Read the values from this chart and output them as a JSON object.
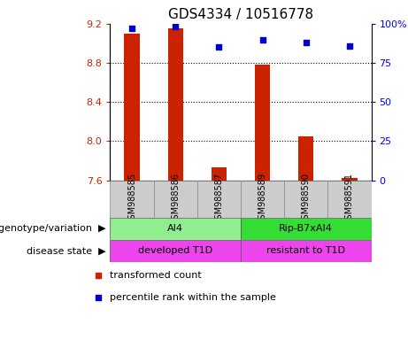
{
  "title": "GDS4334 / 10516778",
  "samples": [
    "GSM988585",
    "GSM988586",
    "GSM988587",
    "GSM988589",
    "GSM988590",
    "GSM988591"
  ],
  "bar_values": [
    9.1,
    9.15,
    7.73,
    8.78,
    8.05,
    7.62
  ],
  "percentile_values": [
    97,
    98,
    85,
    90,
    88,
    86
  ],
  "bar_color": "#cc2200",
  "point_color": "#0000cc",
  "ylim_left": [
    7.6,
    9.2
  ],
  "ylim_right": [
    0,
    100
  ],
  "yticks_left": [
    7.6,
    8.0,
    8.4,
    8.8,
    9.2
  ],
  "yticks_right": [
    0,
    25,
    50,
    75,
    100
  ],
  "ytick_labels_right": [
    "0",
    "25",
    "50",
    "75",
    "100%"
  ],
  "grid_values": [
    8.0,
    8.4,
    8.8
  ],
  "genotype_labels": [
    [
      "AI4",
      0,
      2
    ],
    [
      "Rip-B7xAI4",
      3,
      5
    ]
  ],
  "genotype_colors": [
    "#90ee90",
    "#33dd33"
  ],
  "disease_labels": [
    [
      "developed T1D",
      0,
      2
    ],
    [
      "resistant to T1D",
      3,
      5
    ]
  ],
  "disease_color": "#ee44ee",
  "sample_bg_color": "#cccccc",
  "legend_red_label": "transformed count",
  "legend_blue_label": "percentile rank within the sample",
  "bar_width": 0.35,
  "title_fontsize": 11,
  "tick_fontsize": 8,
  "row_label_fontsize": 8,
  "sample_fontsize": 7,
  "anno_fontsize": 8
}
